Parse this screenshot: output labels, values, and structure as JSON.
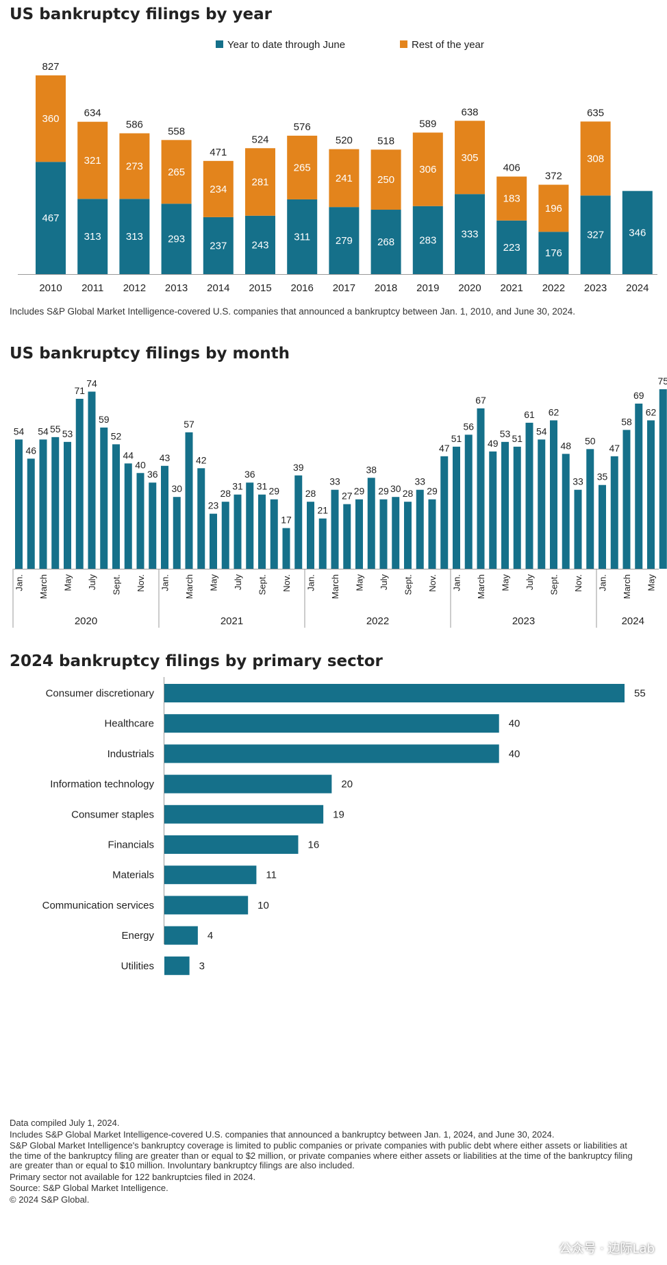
{
  "colors": {
    "teal": "#15708a",
    "orange": "#e3841c",
    "text": "#222222",
    "axis": "#999999"
  },
  "chart_data": [
    {
      "type": "bar",
      "stacked": true,
      "title": "US bankruptcy filings by year",
      "categories": [
        "2010",
        "2011",
        "2012",
        "2013",
        "2014",
        "2015",
        "2016",
        "2017",
        "2018",
        "2019",
        "2020",
        "2021",
        "2022",
        "2023",
        "2024"
      ],
      "series": [
        {
          "name": "Year to date through June",
          "values": [
            467,
            313,
            313,
            293,
            237,
            243,
            311,
            279,
            268,
            283,
            333,
            223,
            176,
            327,
            346
          ]
        },
        {
          "name": "Rest of the year",
          "values": [
            360,
            321,
            273,
            265,
            234,
            281,
            265,
            241,
            250,
            306,
            305,
            183,
            196,
            308,
            null
          ]
        }
      ],
      "totals": [
        827,
        634,
        586,
        558,
        471,
        524,
        576,
        520,
        518,
        589,
        638,
        406,
        372,
        635,
        null
      ],
      "legend_position": "top-center",
      "ylim": [
        0,
        900
      ],
      "note": "Includes S&P Global Market Intelligence-covered U.S. companies that announced a bankruptcy between Jan. 1, 2010, and June 30, 2024."
    },
    {
      "type": "bar",
      "title": "US bankruptcy filings by month",
      "values": [
        54,
        46,
        54,
        55,
        53,
        71,
        74,
        59,
        52,
        44,
        40,
        36,
        43,
        30,
        57,
        42,
        23,
        28,
        31,
        36,
        31,
        29,
        17,
        39,
        28,
        21,
        33,
        27,
        29,
        38,
        29,
        30,
        28,
        33,
        29,
        47,
        51,
        56,
        67,
        49,
        53,
        51,
        61,
        54,
        62,
        48,
        33,
        50,
        35,
        47,
        58,
        69,
        62,
        75
      ],
      "month_labels": [
        "Jan.",
        "March",
        "May",
        "July",
        "Sept.",
        "Nov."
      ],
      "years": [
        {
          "label": "2020",
          "months": 12
        },
        {
          "label": "2021",
          "months": 12
        },
        {
          "label": "2022",
          "months": 12
        },
        {
          "label": "2023",
          "months": 12
        },
        {
          "label": "2024",
          "months": 6
        }
      ],
      "ylim": [
        0,
        80
      ]
    },
    {
      "type": "bar",
      "orientation": "horizontal",
      "title": "2024 bankruptcy filings by primary sector",
      "categories": [
        "Consumer discretionary",
        "Healthcare",
        "Industrials",
        "Information technology",
        "Consumer staples",
        "Financials",
        "Materials",
        "Communication services",
        "Energy",
        "Utilities"
      ],
      "values": [
        55,
        40,
        40,
        20,
        19,
        16,
        11,
        10,
        4,
        3
      ],
      "xlim": [
        0,
        55
      ]
    }
  ],
  "footnotes": [
    "Data compiled July 1, 2024.",
    "Includes S&P Global Market Intelligence-covered U.S. companies that announced a bankruptcy between Jan. 1, 2024, and June 30, 2024.",
    "S&P Global Market Intelligence's bankruptcy coverage is limited to public companies or private companies with public debt where either assets or liabilities at the time of the bankruptcy filing are greater than or equal to $2 million, or private companies where either assets or liabilities at the time of the bankruptcy filing are greater than or equal to $10 million. Involuntary bankruptcy filings are also included.",
    "Primary sector not available for 122 bankruptcies filed in 2024.",
    "Source: S&P Global Market Intelligence.",
    "© 2024 S&P Global."
  ],
  "watermark": "公众号 · 边际Lab"
}
